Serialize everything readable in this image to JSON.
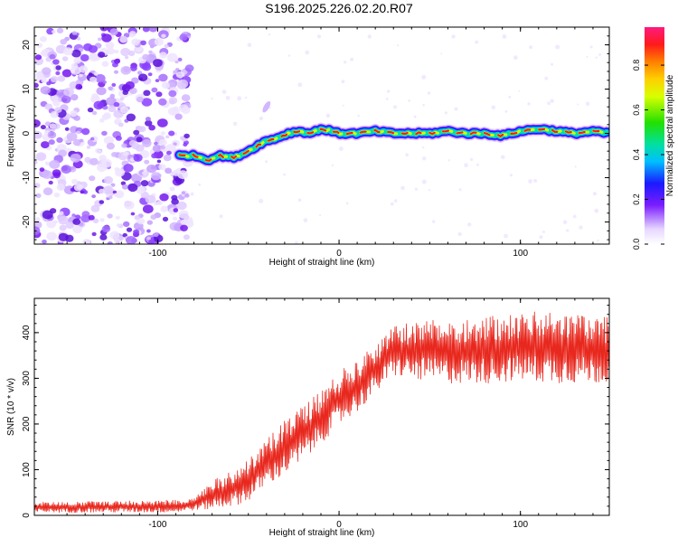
{
  "title": "S196.2025.226.02.20.R07",
  "spectrogram": {
    "type": "heatmap",
    "xlabel": "Height of straight line (km)",
    "ylabel": "Frequency (Hz)",
    "xlim": [
      -168,
      149
    ],
    "ylim": [
      -25,
      24
    ],
    "xticks": [
      -100,
      0,
      100
    ],
    "yticks": [
      -20,
      -10,
      0,
      10,
      20
    ],
    "colorbar": {
      "label": "Normalized spectral amplitude",
      "range": [
        0,
        0.97
      ],
      "ticks": [
        0.0,
        0.2,
        0.4,
        0.6,
        0.8
      ]
    },
    "noise_region_x": [
      -168,
      -82
    ],
    "signal_track": {
      "x": [
        -88,
        -80,
        -72,
        -66,
        -58,
        -50,
        -42,
        -34,
        -28,
        -22,
        -16,
        -10,
        -4,
        0,
        10,
        20,
        30,
        40,
        50,
        60,
        70,
        80,
        90,
        100,
        110,
        120,
        130,
        140,
        148
      ],
      "freq": [
        -5,
        -5,
        -6,
        -5,
        -5.5,
        -4,
        -2,
        -1,
        0,
        0.5,
        0,
        1,
        0.5,
        0,
        0,
        0.5,
        0,
        0,
        0,
        0.5,
        0,
        0,
        -0.5,
        0.5,
        1,
        0.5,
        0,
        0.5,
        0
      ]
    }
  },
  "snr": {
    "type": "line",
    "xlabel": "Height of straight line (km)",
    "ylabel": "SNR (10 * v/v)",
    "xlim": [
      -168,
      149
    ],
    "ylim": [
      0,
      475
    ],
    "xticks": [
      -100,
      0,
      100
    ],
    "yticks": [
      0,
      100,
      200,
      300,
      400
    ],
    "color": "#e8281e",
    "envelope": {
      "x": [
        -168,
        -90,
        -80,
        -70,
        -60,
        -50,
        -40,
        -30,
        -20,
        -10,
        0,
        10,
        20,
        30,
        40,
        60,
        80,
        100,
        120,
        149
      ],
      "low": [
        5,
        5,
        10,
        10,
        15,
        25,
        60,
        80,
        110,
        150,
        190,
        220,
        260,
        300,
        290,
        280,
        280,
        285,
        280,
        280
      ],
      "high": [
        30,
        35,
        40,
        80,
        100,
        130,
        170,
        220,
        250,
        280,
        320,
        350,
        380,
        420,
        430,
        440,
        445,
        450,
        460,
        440
      ]
    }
  }
}
